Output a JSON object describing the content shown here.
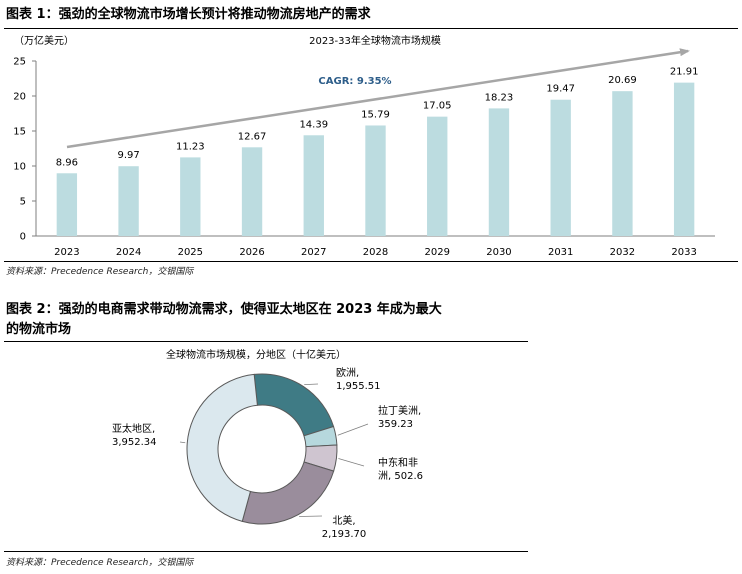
{
  "figure1": {
    "title": "图表 1：强劲的全球物流市场增长预计将推动物流房地产的需求",
    "source": "资料来源：Precedence Research，交银国际",
    "chart_data": {
      "type": "bar",
      "title": "2023-33年全球物流市场规模",
      "ylabel": "（万亿美元）",
      "categories": [
        "2023",
        "2024",
        "2025",
        "2026",
        "2027",
        "2028",
        "2029",
        "2030",
        "2031",
        "2032",
        "2033"
      ],
      "values": [
        8.96,
        9.97,
        11.23,
        12.67,
        14.39,
        15.79,
        17.05,
        18.23,
        19.47,
        20.69,
        21.91
      ],
      "value_labels": [
        "8.96",
        "9.97",
        "11.23",
        "12.67",
        "14.39",
        "15.79",
        "17.05",
        "18.23",
        "19.47",
        "20.69",
        "21.91"
      ],
      "ylim": [
        0,
        25
      ],
      "yticks": [
        "0",
        "5",
        "10",
        "15",
        "20",
        "25"
      ],
      "grid": false,
      "annotation": "CAGR: 9.35%",
      "bar_color": "#bcdce0",
      "arrow_color": "#a6a6a6",
      "annotation_color": "#2e5e8a"
    }
  },
  "figure2": {
    "title_line1": "图表 2：强劲的电商需求带动物流需求，使得亚太地区在 2023 年成为最大",
    "title_line2": "的物流市场",
    "source": "资料来源：Precedence Research，交银国际",
    "chart_data": {
      "type": "pie",
      "title": "全球物流市场规模，分地区（十亿美元）",
      "labels": [
        "欧洲,",
        "拉丁美洲,",
        "中东和非",
        "北美,",
        "亚太地区,"
      ],
      "labels_line2": [
        "1,955.51",
        "359.23",
        "洲, 502.6",
        "2,193.70",
        "3,952.34"
      ],
      "values": [
        1955.51,
        359.23,
        502.6,
        2193.7,
        3952.34
      ],
      "colors": [
        "#3f7b85",
        "#b6d8dd",
        "#cfc5d0",
        "#9a8d9c",
        "#dbe8ee"
      ]
    }
  }
}
